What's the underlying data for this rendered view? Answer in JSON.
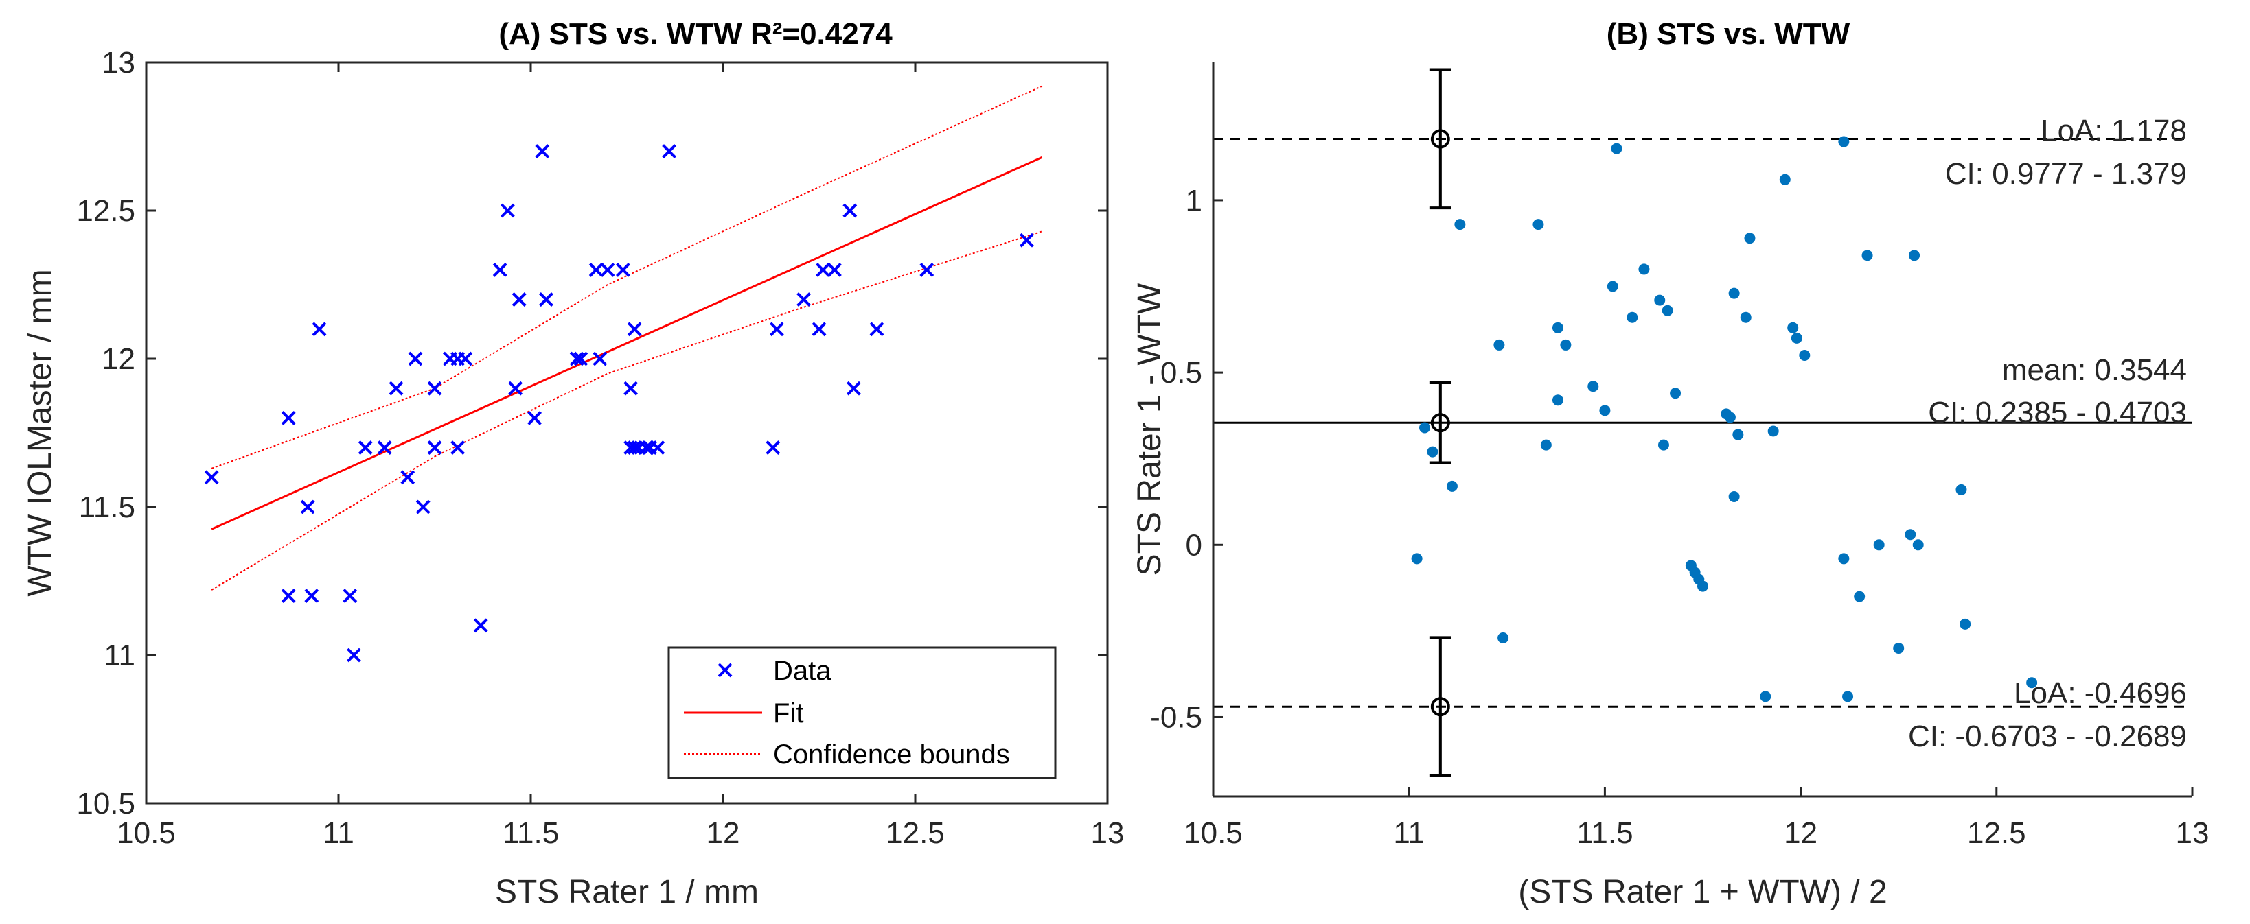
{
  "chart_data": [
    {
      "type": "scatter",
      "title": "(A) STS vs. WTW R²=0.4274",
      "xlabel": "STS Rater 1 / mm",
      "ylabel": "WTW IOLMaster / mm",
      "xlim": [
        10.5,
        13
      ],
      "ylim": [
        10.5,
        13
      ],
      "xticks": [
        "10.5",
        "11",
        "11.5",
        "12",
        "12.5",
        "13"
      ],
      "yticks": [
        "10.5",
        "11",
        "11.5",
        "12",
        "12.5",
        "13"
      ],
      "colors": {
        "data": "#0000ff",
        "fit": "#ff0000",
        "bounds": "#ff0000"
      },
      "series": [
        {
          "name": "Data",
          "marker": "x",
          "x": [
            10.67,
            10.87,
            10.87,
            10.92,
            10.93,
            10.95,
            11.03,
            11.04,
            11.07,
            11.12,
            11.15,
            11.18,
            11.2,
            11.22,
            11.25,
            11.25,
            11.29,
            11.31,
            11.31,
            11.33,
            11.37,
            11.42,
            11.44,
            11.46,
            11.47,
            11.47,
            11.51,
            11.53,
            11.54,
            11.54,
            11.62,
            11.63,
            11.67,
            11.68,
            11.7,
            11.74,
            11.76,
            11.76,
            11.77,
            11.77,
            11.78,
            11.8,
            11.81,
            11.83,
            11.86,
            12.13,
            12.14,
            12.21,
            12.25,
            12.26,
            12.29,
            12.33,
            12.34,
            12.4,
            12.53,
            12.79
          ],
          "y": [
            11.6,
            11.8,
            11.2,
            11.5,
            11.2,
            12.1,
            11.2,
            11.0,
            11.7,
            11.7,
            11.9,
            11.6,
            12.0,
            11.5,
            11.7,
            11.9,
            12.0,
            12.0,
            11.7,
            12.0,
            11.1,
            12.3,
            12.5,
            11.9,
            12.2,
            12.2,
            11.8,
            12.7,
            12.2,
            12.2,
            12.0,
            12.0,
            12.3,
            12.0,
            12.3,
            12.3,
            11.9,
            11.7,
            12.1,
            11.7,
            11.7,
            11.7,
            11.7,
            11.7,
            12.7,
            11.7,
            12.1,
            12.2,
            12.1,
            12.3,
            12.3,
            12.5,
            11.9,
            12.1,
            12.3,
            12.4
          ]
        },
        {
          "name": "Fit",
          "x": [
            10.67,
            12.83
          ],
          "y": [
            11.425,
            12.68
          ]
        },
        {
          "name": "Confidence bounds",
          "upper": {
            "x": [
              10.67,
              11.25,
              11.7,
              12.2,
              12.83
            ],
            "y": [
              11.63,
              11.9,
              12.25,
              12.55,
              12.92
            ]
          },
          "lower": {
            "x": [
              10.67,
              11.25,
              11.7,
              12.2,
              12.83
            ],
            "y": [
              11.22,
              11.67,
              11.95,
              12.17,
              12.43
            ]
          }
        }
      ],
      "legend": {
        "position": "bottom-right",
        "entries": [
          "Data",
          "Fit",
          "Confidence bounds"
        ]
      }
    },
    {
      "type": "scatter",
      "title": "(B) STS vs. WTW",
      "xlabel": "(STS Rater 1 + WTW) / 2",
      "ylabel": "STS Rater 1 - WTW",
      "xlim": [
        10.5,
        13
      ],
      "ylim": [
        -0.73,
        1.4
      ],
      "xticks": [
        "10.5",
        "11",
        "11.5",
        "12",
        "12.5",
        "13"
      ],
      "yticks": [
        "-0.5",
        "0",
        "0.5",
        "1"
      ],
      "colors": {
        "points": "#0072bd",
        "lines": "#000000"
      },
      "series": [
        {
          "name": "Differences",
          "x": [
            11.02,
            11.04,
            11.06,
            11.11,
            11.13,
            11.23,
            11.24,
            11.33,
            11.35,
            11.38,
            11.38,
            11.4,
            11.47,
            11.5,
            11.52,
            11.53,
            11.57,
            11.6,
            11.64,
            11.65,
            11.66,
            11.68,
            11.72,
            11.73,
            11.74,
            11.75,
            11.81,
            11.82,
            11.83,
            11.83,
            11.84,
            11.86,
            11.87,
            11.91,
            11.93,
            11.96,
            11.98,
            11.99,
            12.01,
            12.11,
            12.11,
            12.12,
            12.15,
            12.17,
            12.2,
            12.25,
            12.28,
            12.29,
            12.3,
            12.41,
            12.42,
            12.59
          ],
          "y": [
            -0.04,
            0.34,
            0.27,
            0.17,
            0.93,
            0.58,
            -0.27,
            0.93,
            0.29,
            0.63,
            0.42,
            0.58,
            0.46,
            0.39,
            0.75,
            1.15,
            0.66,
            0.8,
            0.71,
            0.29,
            0.68,
            0.44,
            -0.06,
            -0.08,
            -0.1,
            -0.12,
            0.38,
            0.37,
            0.14,
            0.73,
            0.32,
            0.66,
            0.89,
            -0.44,
            0.33,
            1.06,
            0.63,
            0.6,
            0.55,
            1.17,
            -0.04,
            -0.44,
            -0.15,
            0.84,
            0.0,
            -0.3,
            0.03,
            0.84,
            0.0,
            0.16,
            -0.23,
            -0.4
          ]
        }
      ],
      "lines": {
        "loa_upper": {
          "value": 1.178,
          "ci": [
            0.9777,
            1.379
          ]
        },
        "mean": {
          "value": 0.3544,
          "ci": [
            0.2385,
            0.4703
          ]
        },
        "loa_lower": {
          "value": -0.4696,
          "ci": [
            -0.6703,
            -0.2689
          ]
        },
        "errorbar_x": 11.08
      },
      "annotations": {
        "loa_upper": "LoA: 1.178",
        "loa_upper_ci": "CI: 0.9777 - 1.379",
        "mean": "mean: 0.3544",
        "mean_ci": "CI: 0.2385 - 0.4703",
        "loa_lower": "LoA: -0.4696",
        "loa_lower_ci": "CI: -0.6703 - -0.2689"
      }
    }
  ]
}
